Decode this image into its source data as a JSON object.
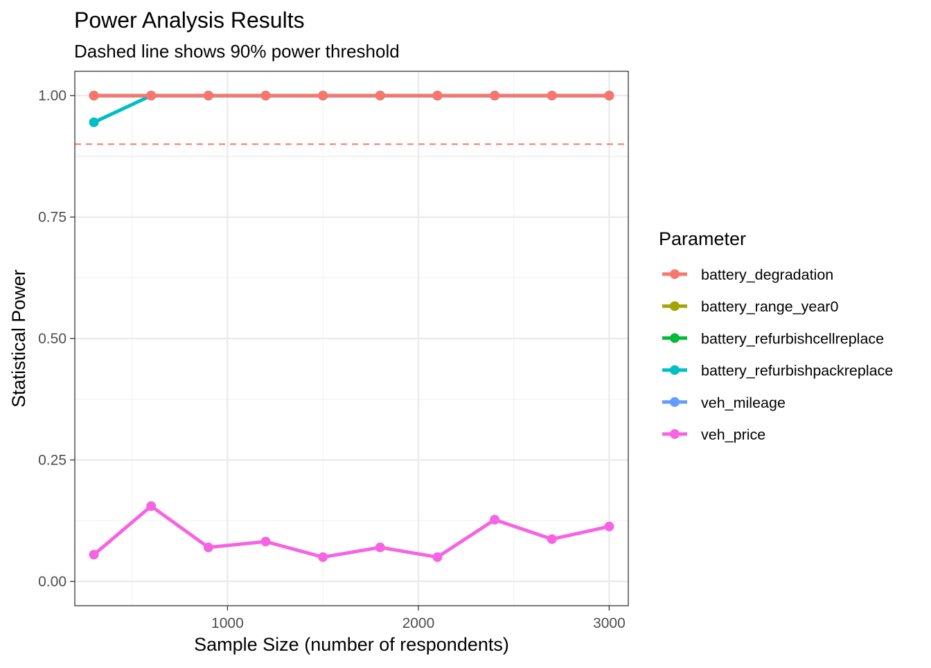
{
  "chart_data": {
    "type": "line",
    "title": "Power Analysis Results",
    "subtitle": "Dashed line shows 90% power threshold",
    "xlabel": "Sample Size (number of respondents)",
    "ylabel": "Statistical Power",
    "xlim": [
      200,
      3100
    ],
    "ylim": [
      -0.05,
      1.05
    ],
    "x_ticks": [
      1000,
      2000,
      3000
    ],
    "x_tick_labels": [
      "1000",
      "2000",
      "3000"
    ],
    "y_ticks": [
      0.0,
      0.25,
      0.5,
      0.75,
      1.0
    ],
    "y_tick_labels": [
      "0.00",
      "0.25",
      "0.50",
      "0.75",
      "1.00"
    ],
    "grid": true,
    "threshold": {
      "value": 0.9,
      "color": "#F8766D",
      "style": "dashed"
    },
    "legend_title": "Parameter",
    "legend_position": "right",
    "x": [
      300,
      600,
      900,
      1200,
      1500,
      1800,
      2100,
      2400,
      2700,
      3000
    ],
    "series": [
      {
        "name": "battery_degradation",
        "color": "#F8766D",
        "values": [
          1.0,
          1.0,
          1.0,
          1.0,
          1.0,
          1.0,
          1.0,
          1.0,
          1.0,
          1.0
        ]
      },
      {
        "name": "battery_range_year0",
        "color": "#A3A500",
        "values": [
          1.0,
          1.0,
          1.0,
          1.0,
          1.0,
          1.0,
          1.0,
          1.0,
          1.0,
          1.0
        ]
      },
      {
        "name": "battery_refurbishcellreplace",
        "color": "#00BA38",
        "values": [
          1.0,
          1.0,
          1.0,
          1.0,
          1.0,
          1.0,
          1.0,
          1.0,
          1.0,
          1.0
        ]
      },
      {
        "name": "battery_refurbishpackreplace",
        "color": "#00BFC4",
        "values": [
          0.945,
          1.0,
          1.0,
          1.0,
          1.0,
          1.0,
          1.0,
          1.0,
          1.0,
          1.0
        ]
      },
      {
        "name": "veh_mileage",
        "color": "#619CFF",
        "values": [
          1.0,
          1.0,
          1.0,
          1.0,
          1.0,
          1.0,
          1.0,
          1.0,
          1.0,
          1.0
        ]
      },
      {
        "name": "veh_price",
        "color": "#F564E3",
        "values": [
          0.055,
          0.155,
          0.07,
          0.082,
          0.05,
          0.07,
          0.05,
          0.127,
          0.087,
          0.113
        ]
      }
    ],
    "draw_order": [
      "battery_range_year0",
      "battery_refurbishcellreplace",
      "battery_refurbishpackreplace",
      "veh_price",
      "veh_mileage",
      "battery_degradation"
    ],
    "line_only": [
      "veh_mileage"
    ]
  }
}
